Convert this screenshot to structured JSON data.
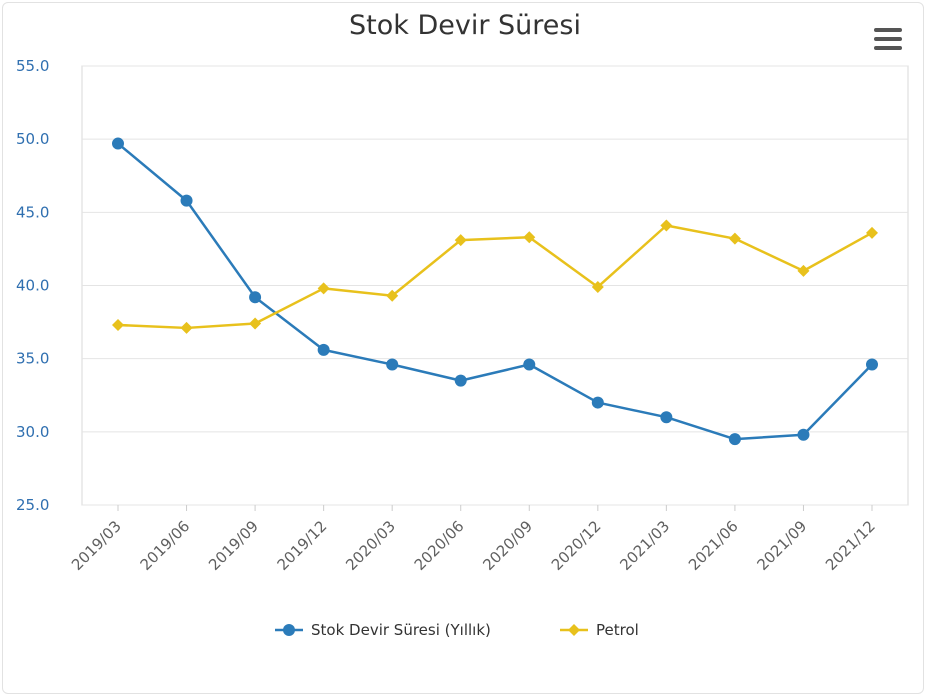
{
  "chart_data": {
    "type": "line",
    "title": "Stok Devir Süresi",
    "categories": [
      "2019/03",
      "2019/06",
      "2019/09",
      "2019/12",
      "2020/03",
      "2020/06",
      "2020/09",
      "2020/12",
      "2021/03",
      "2021/06",
      "2021/09",
      "2021/12"
    ],
    "ylim": [
      25.0,
      55.0
    ],
    "yticks": [
      "25.0",
      "30.0",
      "35.0",
      "40.0",
      "45.0",
      "50.0",
      "55.0"
    ],
    "grid": true,
    "legend_position": "bottom",
    "series": [
      {
        "name": "Stok Devir Süresi (Yıllık)",
        "color": "#2b7bb9",
        "marker": "circle",
        "values": [
          49.7,
          45.8,
          39.2,
          35.6,
          34.6,
          33.5,
          34.6,
          32.0,
          31.0,
          29.5,
          29.8,
          34.6
        ]
      },
      {
        "name": "Petrol",
        "color": "#e8c11c",
        "marker": "diamond",
        "values": [
          37.3,
          37.1,
          37.4,
          39.8,
          39.3,
          43.1,
          43.3,
          39.9,
          44.1,
          43.2,
          41.0,
          43.6
        ]
      }
    ]
  },
  "menu_icon": "hamburger-menu-icon"
}
